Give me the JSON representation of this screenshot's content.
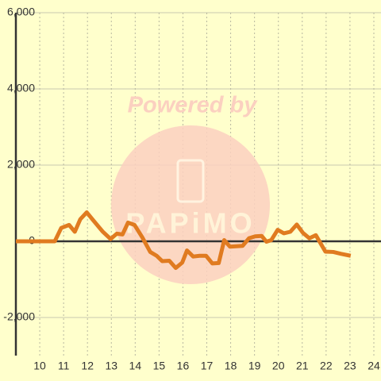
{
  "chart_data": {
    "type": "line",
    "watermark": {
      "title": "Powered by",
      "brand": "PAPiMO"
    },
    "x": [
      9.0,
      10.63,
      10.9,
      11.23,
      11.47,
      11.7,
      11.97,
      12.23,
      12.63,
      12.97,
      13.23,
      13.47,
      13.7,
      13.97,
      14.3,
      14.63,
      14.9,
      15.13,
      15.43,
      15.7,
      15.97,
      16.17,
      16.43,
      16.7,
      16.97,
      17.23,
      17.5,
      17.73,
      17.97,
      18.23,
      18.5,
      18.77,
      19.03,
      19.3,
      19.5,
      19.7,
      19.97,
      20.23,
      20.5,
      20.77,
      21.03,
      21.3,
      21.57,
      21.97,
      22.3,
      22.63,
      23.03
    ],
    "series": [
      {
        "color": "#e07b20",
        "values": [
          0,
          0,
          350,
          430,
          250,
          580,
          760,
          560,
          260,
          60,
          200,
          180,
          490,
          430,
          100,
          -280,
          -380,
          -520,
          -510,
          -700,
          -560,
          -240,
          -400,
          -380,
          -380,
          -580,
          -570,
          30,
          -140,
          -130,
          -120,
          80,
          130,
          140,
          -10,
          30,
          300,
          210,
          250,
          440,
          220,
          80,
          160,
          -270,
          -280,
          -330,
          -380
        ]
      }
    ],
    "xlim": [
      9,
      24.3
    ],
    "xticks": [
      10,
      11,
      12,
      13,
      14,
      15,
      16,
      17,
      18,
      19,
      20,
      21,
      22,
      23,
      24
    ],
    "ylim": [
      -3000,
      6000
    ],
    "yticks": [
      {
        "value": -2000,
        "label": "-2,000"
      },
      0,
      {
        "value": 2000,
        "label": "2,000"
      },
      {
        "value": 4000,
        "label": "4,000"
      },
      {
        "value": 6000,
        "label": "6,000"
      }
    ],
    "grid": true
  }
}
